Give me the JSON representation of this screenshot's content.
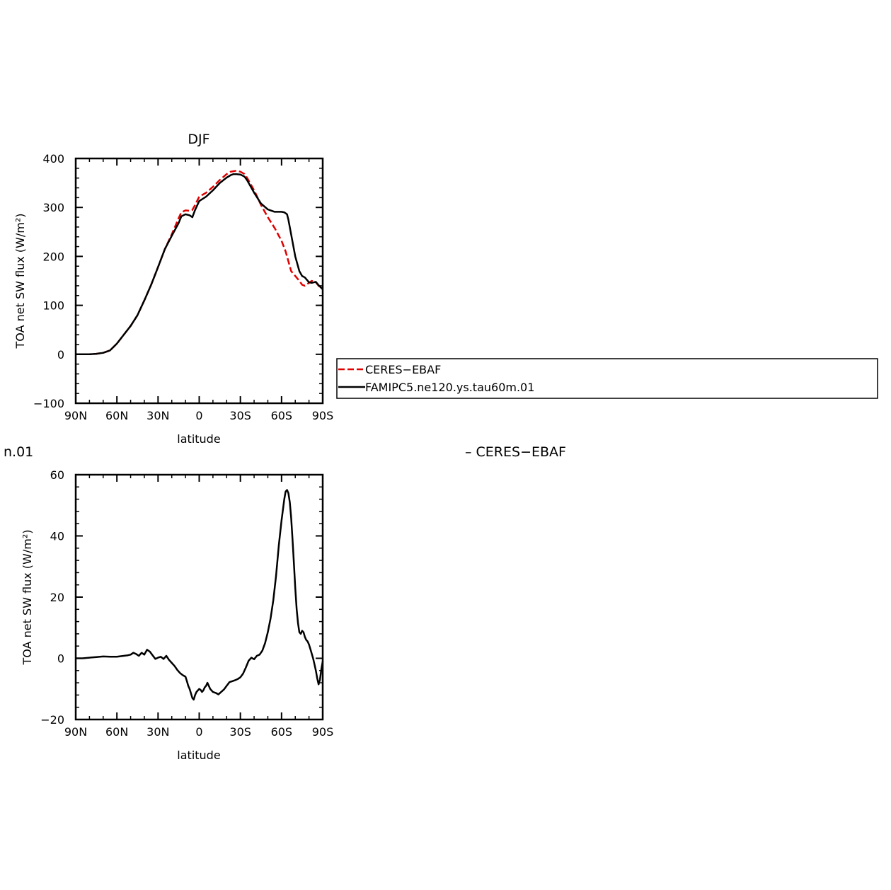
{
  "chart_data": [
    {
      "type": "line",
      "title": "DJF",
      "xlabel": "latitude",
      "ylabel": "TOA net SW flux (W/m²)",
      "xlim": [
        90,
        -90
      ],
      "ylim": [
        -100,
        400
      ],
      "xticks": [
        90,
        60,
        30,
        0,
        -30,
        -60,
        -90
      ],
      "xtick_labels": [
        "90N",
        "60N",
        "30N",
        "0",
        "30S",
        "60S",
        "90S"
      ],
      "yticks": [
        -100,
        0,
        100,
        200,
        300,
        400
      ],
      "ytick_labels": [
        "−100",
        "0",
        "100",
        "200",
        "300",
        "400"
      ],
      "grid": false,
      "legend_position": "right",
      "series": [
        {
          "name": "CERES−EBAF",
          "color": "#e00000",
          "dash": "dashed",
          "x": [
            90,
            85,
            80,
            75,
            70,
            65,
            60,
            55,
            50,
            45,
            40,
            35,
            30,
            25,
            20,
            15,
            13,
            10,
            7,
            5,
            3,
            0,
            -5,
            -10,
            -15,
            -20,
            -23,
            -25,
            -27,
            -30,
            -33,
            -35,
            -40,
            -45,
            -50,
            -55,
            -60,
            -63,
            -65,
            -67,
            -70,
            -73,
            -75,
            -77,
            -80,
            -82,
            -85,
            -87,
            -90
          ],
          "y": [
            0,
            0,
            0,
            1,
            3,
            8,
            22,
            40,
            58,
            80,
            110,
            142,
            178,
            215,
            245,
            278,
            290,
            294,
            293,
            295,
            305,
            322,
            330,
            342,
            356,
            368,
            373,
            374,
            375,
            373,
            368,
            360,
            335,
            305,
            280,
            258,
            232,
            210,
            190,
            170,
            160,
            150,
            142,
            140,
            146,
            150,
            147,
            140,
            133
          ]
        },
        {
          "name": "FAMIPC5.ne120.ys.tau60m.01",
          "color": "#000000",
          "dash": "solid",
          "x": [
            90,
            85,
            80,
            75,
            70,
            65,
            60,
            55,
            50,
            45,
            40,
            35,
            30,
            25,
            20,
            15,
            13,
            10,
            7,
            5,
            3,
            0,
            -5,
            -10,
            -15,
            -20,
            -23,
            -25,
            -27,
            -30,
            -33,
            -35,
            -40,
            -45,
            -50,
            -55,
            -58,
            -60,
            -62,
            -64,
            -65,
            -67,
            -70,
            -73,
            -75,
            -77,
            -80,
            -82,
            -85,
            -87,
            -90
          ],
          "y": [
            0,
            0,
            0,
            1,
            3,
            8,
            22,
            40,
            58,
            80,
            110,
            142,
            178,
            215,
            242,
            268,
            282,
            286,
            284,
            280,
            295,
            313,
            322,
            335,
            350,
            361,
            366,
            368,
            368,
            367,
            363,
            355,
            330,
            308,
            296,
            291,
            291,
            291,
            290,
            286,
            275,
            245,
            200,
            170,
            160,
            157,
            147,
            146,
            148,
            141,
            133
          ]
        }
      ]
    },
    {
      "type": "line",
      "title": "",
      "xlabel": "latitude",
      "ylabel": "TOA net SW flux (W/m²)",
      "xlim": [
        90,
        -90
      ],
      "ylim": [
        -20,
        60
      ],
      "xticks": [
        90,
        60,
        30,
        0,
        -30,
        -60,
        -90
      ],
      "xtick_labels": [
        "90N",
        "60N",
        "30N",
        "0",
        "30S",
        "60S",
        "90S"
      ],
      "yticks": [
        -20,
        0,
        20,
        40,
        60
      ],
      "ytick_labels": [
        "−20",
        "0",
        "20",
        "40",
        "60"
      ],
      "grid": false,
      "series": [
        {
          "color": "#000000",
          "dash": "solid",
          "x": [
            90,
            85,
            80,
            75,
            70,
            65,
            60,
            55,
            52,
            50,
            48,
            46,
            44,
            42,
            40,
            38,
            36,
            34,
            32,
            30,
            28,
            26,
            24,
            22,
            20,
            18,
            16,
            14,
            12,
            10,
            9,
            8,
            7,
            6,
            5,
            4,
            3,
            2,
            1,
            0,
            -1,
            -2,
            -3,
            -4,
            -5,
            -6,
            -8,
            -10,
            -12,
            -14,
            -16,
            -18,
            -20,
            -22,
            -24,
            -26,
            -28,
            -30,
            -32,
            -34,
            -36,
            -38,
            -40,
            -42,
            -44,
            -46,
            -48,
            -50,
            -52,
            -54,
            -56,
            -58,
            -60,
            -62,
            -63,
            -64,
            -65,
            -66,
            -67,
            -68,
            -69,
            -70,
            -71,
            -72,
            -73,
            -74,
            -75,
            -76,
            -77,
            -78,
            -79,
            -80,
            -81,
            -82,
            -83,
            -84,
            -85,
            -86,
            -87,
            -88,
            -89,
            -90
          ],
          "y": [
            0,
            0,
            0.2,
            0.4,
            0.6,
            0.5,
            0.5,
            0.8,
            1.0,
            1.2,
            1.8,
            1.4,
            0.8,
            1.8,
            1.2,
            2.8,
            2.2,
            1.0,
            -0.2,
            0.2,
            0.5,
            -0.2,
            0.8,
            -0.5,
            -1.5,
            -2.5,
            -3.8,
            -4.8,
            -5.5,
            -6.0,
            -7.5,
            -9.0,
            -10.0,
            -11.5,
            -13.0,
            -13.5,
            -12.0,
            -11.0,
            -10.5,
            -10.0,
            -10.3,
            -11.0,
            -10.5,
            -9.5,
            -9.0,
            -8.0,
            -10.0,
            -11.0,
            -11.3,
            -11.8,
            -11.0,
            -10.2,
            -9.0,
            -7.8,
            -7.5,
            -7.2,
            -6.8,
            -6.2,
            -5.0,
            -3.0,
            -0.8,
            0.2,
            -0.3,
            0.8,
            1.2,
            2.5,
            5.0,
            8.5,
            13.0,
            19.0,
            27.0,
            37.0,
            45.0,
            52.0,
            54.5,
            55.0,
            54.0,
            51.0,
            46.0,
            39.0,
            31.0,
            23.0,
            16.0,
            11.5,
            8.5,
            8.0,
            9.0,
            8.5,
            7.0,
            6.0,
            5.5,
            4.5,
            3.0,
            1.5,
            0.0,
            -2.0,
            -4.0,
            -6.5,
            -8.5,
            -7.0,
            -3.5,
            -1.0
          ]
        }
      ]
    }
  ],
  "fragments": {
    "left_text": "n.01",
    "right_text": "– CERES−EBAF"
  }
}
